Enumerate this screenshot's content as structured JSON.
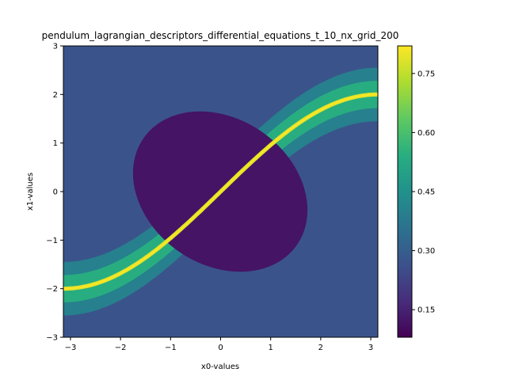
{
  "chart_data": {
    "type": "heatmap",
    "title": "pendulum_lagrangian_descriptors_differential_equations_t_10_nx_grid_200",
    "xlabel": "x0-values",
    "ylabel": "x1-values",
    "xlim": [
      -3.14159,
      3.14159
    ],
    "ylim": [
      -3,
      3
    ],
    "x_ticks": [
      -3,
      -2,
      -1,
      0,
      1,
      2,
      3
    ],
    "y_ticks": [
      -3,
      -2,
      -1,
      0,
      1,
      2,
      3
    ],
    "x_tick_labels": [
      "−3",
      "−2",
      "−1",
      "0",
      "1",
      "2",
      "3"
    ],
    "y_tick_labels": [
      "−3",
      "−2",
      "−1",
      "0",
      "1",
      "2",
      "3"
    ],
    "colorbar": {
      "range": [
        0.08,
        0.82
      ],
      "ticks": [
        0.15,
        0.3,
        0.45,
        0.6,
        0.75
      ],
      "tick_labels": [
        "0.15",
        "0.30",
        "0.45",
        "0.60",
        "0.75"
      ],
      "colormap": "viridis"
    },
    "levels": {
      "inner_region": 0.12,
      "background": 0.27,
      "outer_band": 0.4,
      "near_separatrix": 0.54,
      "separatrix_ridge": 0.79
    },
    "grid": false,
    "legend": "none"
  }
}
